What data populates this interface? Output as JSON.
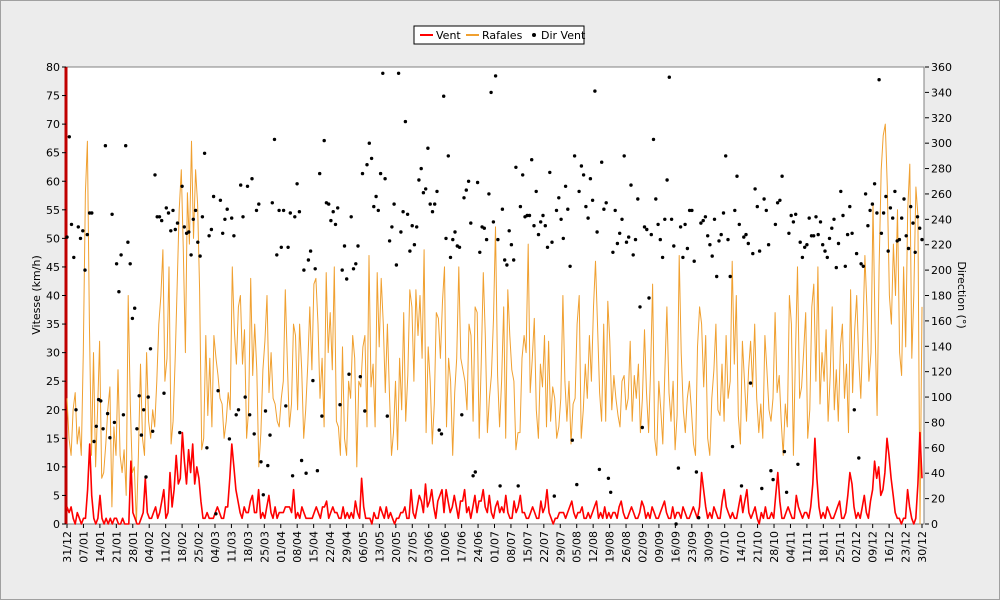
{
  "chart_data": {
    "type": "line",
    "title": "",
    "legend": {
      "placement": "top-center",
      "entries": [
        {
          "name": "Vent",
          "color": "#ff0000",
          "kind": "line"
        },
        {
          "name": "Rafales",
          "color": "#f0a030",
          "kind": "line"
        },
        {
          "name": "Dir Vent",
          "color": "#000000",
          "kind": "point"
        }
      ]
    },
    "y_left": {
      "label": "Vitesse (km/h)",
      "range": [
        0,
        80
      ],
      "ticks": [
        "0",
        "5",
        "10",
        "15",
        "20",
        "25",
        "30",
        "35",
        "40",
        "45",
        "50",
        "55",
        "60",
        "65",
        "70",
        "75",
        "80"
      ]
    },
    "y_right": {
      "label": "Direction (°)",
      "range": [
        0,
        360
      ],
      "ticks": [
        "0",
        "20",
        "40",
        "60",
        "80",
        "100",
        "120",
        "140",
        "160",
        "180",
        "200",
        "220",
        "240",
        "260",
        "280",
        "300",
        "320",
        "340",
        "360"
      ]
    },
    "x_axis": {
      "label": "",
      "tick_labels": [
        "31/12",
        "07/01",
        "14/01",
        "21/01",
        "28/01",
        "04/02",
        "11/02",
        "18/02",
        "25/02",
        "04/03",
        "11/03",
        "18/03",
        "25/03",
        "01/04",
        "08/04",
        "15/04",
        "22/04",
        "29/04",
        "06/05",
        "13/05",
        "20/05",
        "27/05",
        "03/06",
        "10/06",
        "17/06",
        "24/06",
        "01/07",
        "08/07",
        "15/07",
        "22/07",
        "29/07",
        "05/08",
        "12/08",
        "19/08",
        "26/08",
        "02/09",
        "09/09",
        "16/09",
        "23/09",
        "30/09",
        "07/10",
        "14/10",
        "21/10",
        "28/10",
        "04/11",
        "11/11",
        "18/11",
        "25/11",
        "02/12",
        "09/12",
        "16/12",
        "23/12",
        "30/12"
      ]
    },
    "grid": "off",
    "series": [
      {
        "name": "Rafales",
        "axis": "left",
        "color": "#f0a030",
        "values": [
          22,
          15,
          12,
          20,
          23,
          14,
          17,
          12,
          30,
          58,
          67,
          35,
          12,
          30,
          10,
          20,
          32,
          8,
          9,
          14,
          20,
          24,
          3,
          17,
          12,
          27,
          12,
          9,
          13,
          5,
          40,
          21,
          9,
          10,
          0,
          12,
          28,
          15,
          12,
          30,
          18,
          15,
          20,
          17,
          25,
          35,
          40,
          48,
          25,
          29,
          45,
          14,
          18,
          29,
          42,
          55,
          62,
          48,
          30,
          58,
          49,
          67,
          50,
          62,
          56,
          41,
          13,
          15,
          33,
          19,
          29,
          17,
          33,
          29,
          26,
          22,
          21,
          15,
          18,
          23,
          20,
          45,
          34,
          28,
          38,
          40,
          28,
          34,
          15,
          20,
          43,
          26,
          35,
          27,
          10,
          16,
          27,
          32,
          40,
          23,
          30,
          22,
          21,
          18,
          17,
          22,
          25,
          41,
          28,
          17,
          21,
          35,
          33,
          20,
          35,
          27,
          15,
          20,
          28,
          38,
          27,
          42,
          43,
          35,
          22,
          29,
          17,
          44,
          30,
          37,
          27,
          45,
          18,
          17,
          12,
          31,
          15,
          12,
          25,
          22,
          33,
          29,
          10,
          25,
          24,
          31,
          33,
          17,
          47,
          24,
          28,
          17,
          44,
          31,
          43,
          35,
          23,
          35,
          23,
          12,
          16,
          25,
          13,
          29,
          20,
          37,
          18,
          26,
          41,
          38,
          25,
          41,
          33,
          40,
          29,
          48,
          16,
          31,
          25,
          14,
          21,
          37,
          36,
          29,
          39,
          45,
          17,
          29,
          25,
          12,
          23,
          29,
          45,
          29,
          27,
          25,
          20,
          35,
          33,
          18,
          38,
          37,
          15,
          28,
          44,
          33,
          16,
          22,
          26,
          36,
          52,
          26,
          17,
          25,
          38,
          15,
          41,
          33,
          27,
          25,
          13,
          16,
          16,
          29,
          33,
          30,
          49,
          23,
          29,
          36,
          20,
          15,
          28,
          24,
          33,
          17,
          32,
          18,
          24,
          22,
          15,
          17,
          22,
          40,
          25,
          18,
          25,
          14,
          21,
          22,
          35,
          40,
          15,
          20,
          28,
          22,
          33,
          25,
          38,
          46,
          35,
          23,
          18,
          35,
          18,
          39,
          32,
          20,
          26,
          22,
          19,
          17,
          25,
          26,
          20,
          22,
          32,
          18,
          26,
          22,
          28,
          16,
          22,
          34,
          23,
          16,
          27,
          42,
          15,
          12,
          25,
          20,
          14,
          27,
          38,
          23,
          18,
          25,
          13,
          19,
          47,
          30,
          20,
          16,
          22,
          25,
          20,
          14,
          12,
          31,
          38,
          35,
          24,
          33,
          15,
          12,
          22,
          27,
          35,
          20,
          19,
          28,
          18,
          33,
          22,
          25,
          46,
          28,
          40,
          19,
          14,
          32,
          25,
          18,
          27,
          32,
          24,
          35,
          22,
          16,
          21,
          15,
          33,
          27,
          20,
          18,
          22,
          37,
          23,
          26,
          18,
          12,
          21,
          17,
          40,
          35,
          12,
          30,
          45,
          22,
          24,
          30,
          37,
          15,
          20,
          38,
          42,
          25,
          45,
          21,
          30,
          25,
          34,
          18,
          26,
          38,
          20,
          27,
          18,
          31,
          35,
          22,
          28,
          16,
          41,
          23,
          34,
          40,
          29,
          22,
          33,
          47,
          38,
          25,
          30,
          56,
          34,
          19,
          45,
          62,
          68,
          70,
          59,
          40,
          35,
          49,
          40,
          55,
          30,
          26,
          45,
          31,
          55,
          63,
          29,
          40,
          59,
          54,
          0,
          38
        ]
      },
      {
        "name": "Vent",
        "axis": "left",
        "color": "#ff0000",
        "values": [
          3,
          2,
          3,
          1,
          0,
          2,
          1,
          0,
          1,
          1,
          6,
          14,
          5,
          1,
          0,
          1,
          5,
          1,
          0,
          1,
          0,
          1,
          0,
          1,
          1,
          0,
          0,
          1,
          0,
          0,
          0,
          11,
          2,
          1,
          0,
          0,
          1,
          2,
          8,
          2,
          1,
          1,
          2,
          3,
          1,
          2,
          4,
          6,
          1,
          2,
          9,
          3,
          6,
          12,
          7,
          8,
          16,
          11,
          7,
          13,
          9,
          14,
          7,
          10,
          8,
          4,
          1,
          1,
          2,
          1,
          1,
          1,
          2,
          3,
          2,
          1,
          1,
          3,
          3,
          8,
          14,
          10,
          6,
          4,
          2,
          1,
          3,
          2,
          2,
          4,
          5,
          2,
          2,
          6,
          1,
          2,
          1,
          3,
          5,
          2,
          1,
          3,
          1,
          2,
          2,
          2,
          3,
          3,
          3,
          2,
          6,
          1,
          2,
          1,
          3,
          2,
          1,
          1,
          1,
          1,
          2,
          3,
          2,
          1,
          3,
          3,
          4,
          1,
          2,
          3,
          2,
          2,
          1,
          1,
          3,
          1,
          2,
          1,
          2,
          1,
          4,
          2,
          1,
          8,
          3,
          1,
          1,
          1,
          0,
          2,
          1,
          1,
          3,
          2,
          1,
          3,
          1,
          2,
          1,
          0,
          1,
          1,
          2,
          2,
          3,
          1,
          1,
          6,
          2,
          1,
          3,
          5,
          4,
          2,
          7,
          3,
          4,
          6,
          3,
          1,
          4,
          5,
          6,
          2,
          6,
          4,
          2,
          3,
          5,
          3,
          1,
          4,
          4,
          6,
          2,
          3,
          1,
          3,
          5,
          2,
          4,
          4,
          6,
          3,
          2,
          5,
          2,
          1,
          3,
          4,
          2,
          3,
          2,
          5,
          2,
          1,
          1,
          4,
          2,
          3,
          5,
          2,
          2,
          1,
          1,
          2,
          3,
          2,
          1,
          1,
          4,
          2,
          3,
          6,
          2,
          1,
          0,
          1,
          1,
          2,
          2,
          2,
          1,
          2,
          3,
          4,
          2,
          1,
          2,
          2,
          3,
          1,
          1,
          2,
          1,
          2,
          3,
          4,
          1,
          2,
          1,
          3,
          1,
          2,
          1,
          2,
          2,
          1,
          3,
          4,
          2,
          1,
          1,
          2,
          3,
          2,
          1,
          1,
          2,
          4,
          3,
          1,
          2,
          1,
          3,
          2,
          1,
          1,
          2,
          3,
          4,
          2,
          1,
          1,
          3,
          1,
          2,
          2,
          1,
          3,
          2,
          1,
          1,
          2,
          3,
          2,
          1,
          3,
          9,
          6,
          3,
          1,
          2,
          1,
          3,
          2,
          1,
          1,
          4,
          6,
          3,
          2,
          1,
          2,
          1,
          1,
          3,
          5,
          2,
          4,
          6,
          2,
          1,
          2,
          3,
          1,
          0,
          2,
          1,
          3,
          1,
          1,
          2,
          1,
          5,
          9,
          4,
          1,
          1,
          2,
          3,
          2,
          1,
          1,
          5,
          3,
          2,
          1,
          2,
          2,
          1,
          3,
          7,
          15,
          8,
          3,
          1,
          2,
          1,
          3,
          2,
          1,
          1,
          2,
          3,
          4,
          1,
          1,
          2,
          5,
          9,
          7,
          3,
          1,
          2,
          1,
          3,
          5,
          2,
          1,
          4,
          6,
          11,
          8,
          10,
          5,
          6,
          9,
          15,
          12,
          8,
          5,
          2,
          1,
          1,
          0,
          1,
          1,
          6,
          3,
          1,
          0,
          1,
          7,
          16,
          8
        ]
      }
    ],
    "scatter": {
      "name": "Dir Vent",
      "axis": "right",
      "color": "#000000",
      "values": [
        226,
        305,
        236,
        210,
        90,
        234,
        225,
        231,
        200,
        228,
        245,
        245,
        65,
        77,
        98,
        97,
        75,
        298,
        87,
        68,
        244,
        80,
        205,
        183,
        212,
        86,
        298,
        222,
        205,
        162,
        170,
        75,
        101,
        70,
        90,
        37,
        100,
        138,
        73,
        275,
        242,
        242,
        239,
        103,
        249,
        245,
        231,
        247,
        232,
        237,
        72,
        266,
        234,
        229,
        230,
        212,
        240,
        247,
        222,
        211,
        242,
        292,
        60,
        227,
        232,
        258,
        8,
        105,
        255,
        229,
        240,
        248,
        67,
        241,
        227,
        86,
        90,
        267,
        242,
        100,
        266,
        86,
        272,
        71,
        247,
        252,
        49,
        23,
        89,
        46,
        70,
        253,
        303,
        212,
        247,
        218,
        247,
        93,
        218,
        245,
        38,
        242,
        268,
        246,
        50,
        200,
        40,
        208,
        215,
        113,
        201,
        42,
        276,
        85,
        302,
        253,
        252,
        239,
        246,
        236,
        249,
        94,
        200,
        219,
        193,
        118,
        242,
        201,
        205,
        219,
        116,
        276,
        89,
        283,
        300,
        288,
        250,
        258,
        247,
        276,
        355,
        272,
        85,
        223,
        234,
        252,
        204,
        355,
        230,
        246,
        317,
        244,
        215,
        235,
        220,
        234,
        271,
        280,
        261,
        264,
        296,
        252,
        246,
        252,
        262,
        74,
        71,
        337,
        225,
        290,
        210,
        224,
        230,
        219,
        218,
        86,
        257,
        263,
        270,
        237,
        38,
        41,
        269,
        214,
        234,
        233,
        224,
        260,
        340,
        238,
        353,
        224,
        30,
        248,
        208,
        204,
        231,
        220,
        208,
        281,
        30,
        250,
        275,
        242,
        243,
        243,
        287,
        235,
        262,
        228,
        238,
        243,
        235,
        218,
        277,
        222,
        22,
        247,
        257,
        240,
        225,
        266,
        248,
        203,
        66,
        290,
        31,
        262,
        282,
        275,
        250,
        241,
        272,
        255,
        341,
        230,
        43,
        285,
        248,
        253,
        36,
        25,
        214,
        247,
        221,
        229,
        240,
        290,
        222,
        226,
        267,
        212,
        224,
        256,
        171,
        76,
        234,
        232,
        178,
        228,
        303,
        256,
        236,
        224,
        210,
        240,
        271,
        352,
        240,
        219,
        0,
        44,
        234,
        210,
        236,
        217,
        247,
        247,
        207,
        41,
        5,
        237,
        239,
        242,
        227,
        220,
        211,
        240,
        195,
        223,
        228,
        245,
        290,
        224,
        195,
        61,
        247,
        274,
        236,
        30,
        226,
        228,
        221,
        111,
        213,
        264,
        250,
        215,
        28,
        256,
        247,
        220,
        42,
        35,
        236,
        253,
        255,
        274,
        57,
        25,
        229,
        243,
        238,
        244,
        47,
        222,
        210,
        218,
        220,
        241,
        227,
        227,
        242,
        228,
        238,
        220,
        215,
        210,
        225,
        233,
        240,
        202,
        221,
        262,
        243,
        203,
        228,
        250,
        229,
        90,
        213,
        52,
        205,
        203,
        260,
        235,
        247,
        252,
        268,
        245,
        350,
        229,
        245,
        258,
        215,
        249,
        241,
        262,
        223,
        224,
        241,
        256,
        227,
        217,
        250,
        237,
        214,
        242,
        233,
        224
      ]
    }
  }
}
